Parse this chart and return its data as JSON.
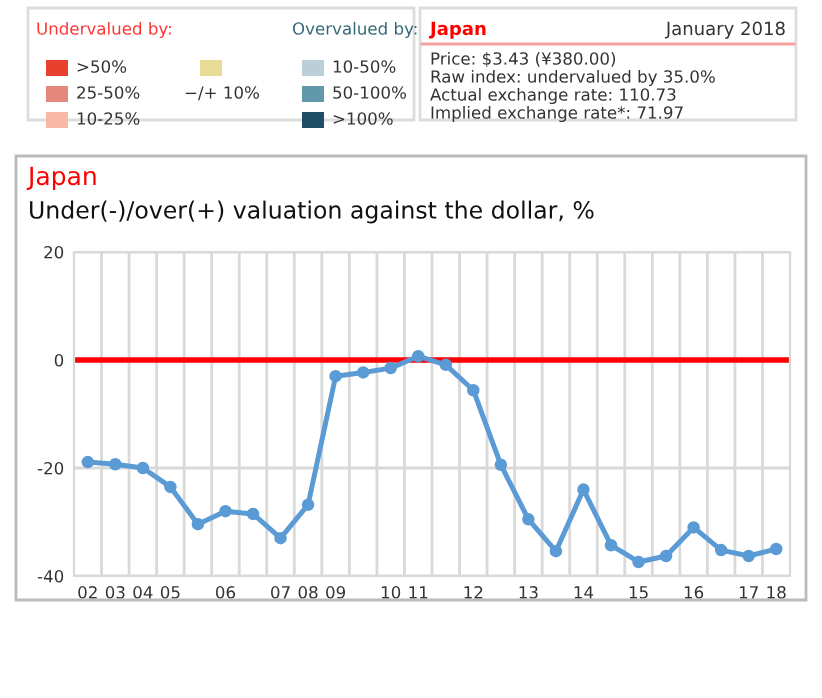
{
  "chart_data": {
    "type": "line",
    "title": "Japan",
    "subtitle": "Under(-)/over(+) valuation against the dollar, %",
    "categories": [
      "02",
      "03",
      "04",
      "05",
      null,
      "06",
      null,
      "07",
      "08",
      "09",
      null,
      "10",
      "11",
      null,
      "12",
      null,
      "13",
      null,
      "14",
      null,
      "15",
      null,
      "16",
      null,
      "17",
      "18"
    ],
    "series": [
      {
        "color": "#5b9bd5",
        "values": [
          -18.9,
          -19.3,
          -20.0,
          -23.5,
          -30.4,
          -28.0,
          -28.5,
          -33.0,
          -26.8,
          -3.0,
          -2.3,
          -1.5,
          0.7,
          -0.9,
          -5.6,
          -19.4,
          -29.5,
          -35.4,
          -24.0,
          -34.3,
          -37.4,
          -36.3,
          -31.0,
          -35.2,
          -36.3,
          -35.0
        ]
      }
    ],
    "ylim": [
      -40,
      20
    ],
    "yticks": [
      -40,
      -20,
      0,
      20
    ],
    "grid": true,
    "marker": "circle",
    "line_style": "solid",
    "legend": false,
    "ref_lines": [
      {
        "axis": "y",
        "value": 0,
        "color": "#ff0000"
      }
    ],
    "annotations": [
      "Undervalued by:",
      ">50%",
      "25-50%",
      "10-25%",
      "−/+ 10%",
      "Overvalued by:",
      "10-50%",
      "50-100%",
      ">100%",
      "Japan",
      "January 2018",
      "Price: $3.43 (¥380.00)",
      "Raw index: undervalued by 35.0%",
      "Actual exchange rate: 110.73",
      "Implied exchange rate*: 71.97"
    ]
  }
}
